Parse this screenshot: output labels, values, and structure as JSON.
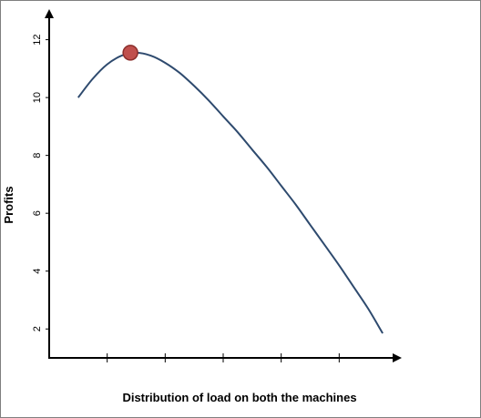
{
  "chart_data": {
    "type": "line",
    "title": "",
    "xlabel": "Distribution of load on both the machines",
    "ylabel": "Profits",
    "x_tick_labels": [],
    "y_tick_labels": [
      "2",
      "4",
      "6",
      "8",
      "10",
      "12"
    ],
    "y_ticks": [
      2,
      4,
      6,
      8,
      10,
      12
    ],
    "xlim": [
      0,
      6
    ],
    "ylim": [
      1,
      12.9
    ],
    "x_tick_positions": [
      1,
      2,
      3,
      4,
      5
    ],
    "grid": false,
    "legend": "none",
    "series": [
      {
        "x": [
          0.5,
          0.75,
          1.0,
          1.25,
          1.5,
          1.75,
          2.0,
          2.25,
          2.5,
          2.75,
          3.0,
          3.25,
          3.5,
          3.75,
          4.0,
          4.25,
          4.5,
          4.75,
          5.0,
          5.25,
          5.5,
          5.75
        ],
        "y": [
          10.0,
          10.65,
          11.15,
          11.45,
          11.55,
          11.45,
          11.2,
          10.85,
          10.4,
          9.9,
          9.35,
          8.8,
          8.2,
          7.6,
          6.95,
          6.3,
          5.6,
          4.9,
          4.2,
          3.45,
          2.7,
          1.85
        ],
        "color": "#2e4a6e"
      }
    ],
    "highlight_point": {
      "x": 1.4,
      "y": 11.55,
      "color": "#c0504d",
      "stroke": "#8b2e2b"
    }
  }
}
